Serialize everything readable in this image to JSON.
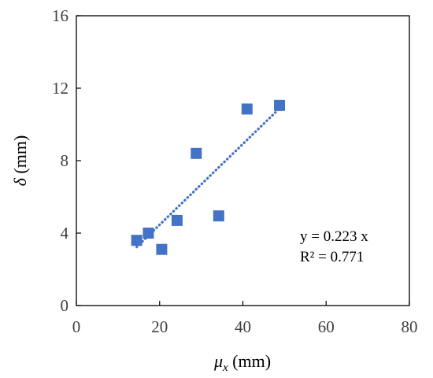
{
  "chart_data": {
    "type": "scatter",
    "title": "",
    "xlabel": {
      "sym": "μ",
      "sub": "x",
      "rest": " (mm)"
    },
    "ylabel": {
      "sym": "δ",
      "rest": " (mm)"
    },
    "xlim": [
      0,
      80
    ],
    "ylim": [
      0,
      16
    ],
    "xticks": [
      "0",
      "20",
      "40",
      "60",
      "80"
    ],
    "yticks": [
      "0",
      "4",
      "8",
      "12",
      "16"
    ],
    "grid": false,
    "marker_color": "#4472C4",
    "trend_color": "#4472C4",
    "points": [
      {
        "x": 14.5,
        "y": 3.6
      },
      {
        "x": 17.3,
        "y": 4.0
      },
      {
        "x": 20.5,
        "y": 3.1
      },
      {
        "x": 24.2,
        "y": 4.7
      },
      {
        "x": 28.8,
        "y": 8.4
      },
      {
        "x": 34.2,
        "y": 4.95
      },
      {
        "x": 41.0,
        "y": 10.85
      },
      {
        "x": 48.8,
        "y": 11.05
      }
    ],
    "trendline": {
      "slope": 0.223,
      "x_range": [
        14.5,
        48.8
      ]
    },
    "annotations": {
      "equation": "y = 0.223 x",
      "r_squared": "R² = 0.771"
    }
  }
}
